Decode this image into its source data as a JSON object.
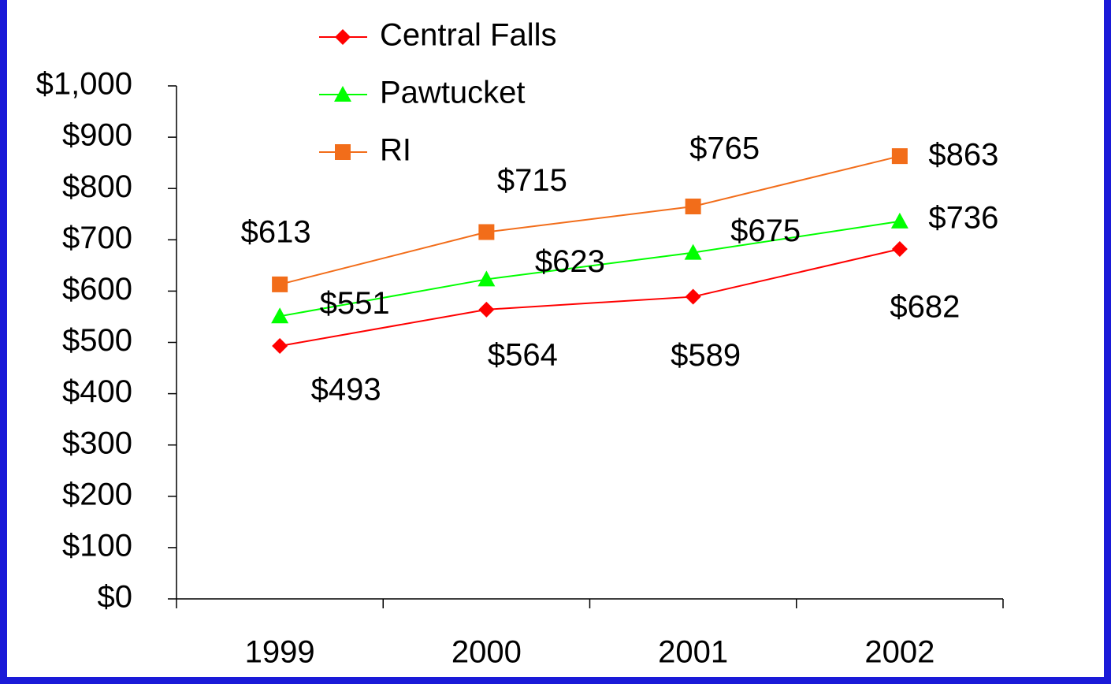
{
  "chart_data": {
    "type": "line",
    "categories": [
      "1999",
      "2000",
      "2001",
      "2002"
    ],
    "series": [
      {
        "name": "Central Falls",
        "color": "#ff0000",
        "marker": "diamond",
        "values": [
          493,
          564,
          589,
          682
        ],
        "value_labels": [
          "$493",
          "$564",
          "$589",
          "$682"
        ]
      },
      {
        "name": "Pawtucket",
        "color": "#00ff00",
        "marker": "triangle",
        "values": [
          551,
          623,
          675,
          736
        ],
        "value_labels": [
          "$551",
          "$623",
          "$675",
          "$736"
        ]
      },
      {
        "name": "RI",
        "color": "#f26d1a",
        "marker": "square",
        "values": [
          613,
          715,
          765,
          863
        ],
        "value_labels": [
          "$613",
          "$715",
          "$765",
          "$863"
        ]
      }
    ],
    "ylim": [
      0,
      1000
    ],
    "yticks": [
      {
        "value": 0,
        "label": "$0"
      },
      {
        "value": 100,
        "label": "$100"
      },
      {
        "value": 200,
        "label": "$200"
      },
      {
        "value": 300,
        "label": "$300"
      },
      {
        "value": 400,
        "label": "$400"
      },
      {
        "value": 500,
        "label": "$500"
      },
      {
        "value": 600,
        "label": "$600"
      },
      {
        "value": 700,
        "label": "$700"
      },
      {
        "value": 800,
        "label": "$800"
      },
      {
        "value": 900,
        "label": "$900"
      },
      {
        "value": 1000,
        "label": "$1,000"
      }
    ],
    "legend": "top"
  }
}
